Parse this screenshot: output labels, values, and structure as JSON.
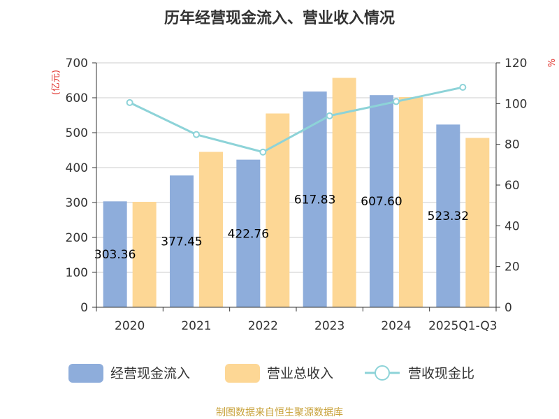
{
  "chart_data": {
    "type": "bar",
    "title": "历年经营现金流入、营业收入情况",
    "categories": [
      "2020",
      "2021",
      "2022",
      "2023",
      "2024",
      "2025Q1-Q3"
    ],
    "series": [
      {
        "name": "经营现金流入",
        "kind": "bar",
        "axis": "left",
        "color": "#8eaddb",
        "values": [
          303.36,
          377.45,
          422.76,
          617.83,
          607.6,
          523.32
        ],
        "labels": [
          "303.36",
          "377.45",
          "422.76",
          "617.83",
          "607.60",
          "523.32"
        ]
      },
      {
        "name": "营业总收入",
        "kind": "bar",
        "axis": "left",
        "color": "#fdd795",
        "values": [
          302,
          445,
          555,
          657,
          602,
          485
        ]
      },
      {
        "name": "营收现金比",
        "kind": "line",
        "axis": "right",
        "color": "#8dd3d8",
        "values": [
          100.5,
          84.8,
          76.2,
          94.0,
          101.0,
          108.0
        ]
      }
    ],
    "left_axis": {
      "label": "(亿元)",
      "min": 0,
      "max": 700,
      "ticks": [
        0,
        100,
        200,
        300,
        400,
        500,
        600,
        700
      ]
    },
    "right_axis": {
      "label": "%",
      "min": 0,
      "max": 120,
      "ticks": [
        0,
        20,
        40,
        60,
        80,
        100,
        120
      ]
    },
    "grid": true,
    "legend_position": "bottom"
  },
  "source_text": "制图数据来自恒生聚源数据库"
}
